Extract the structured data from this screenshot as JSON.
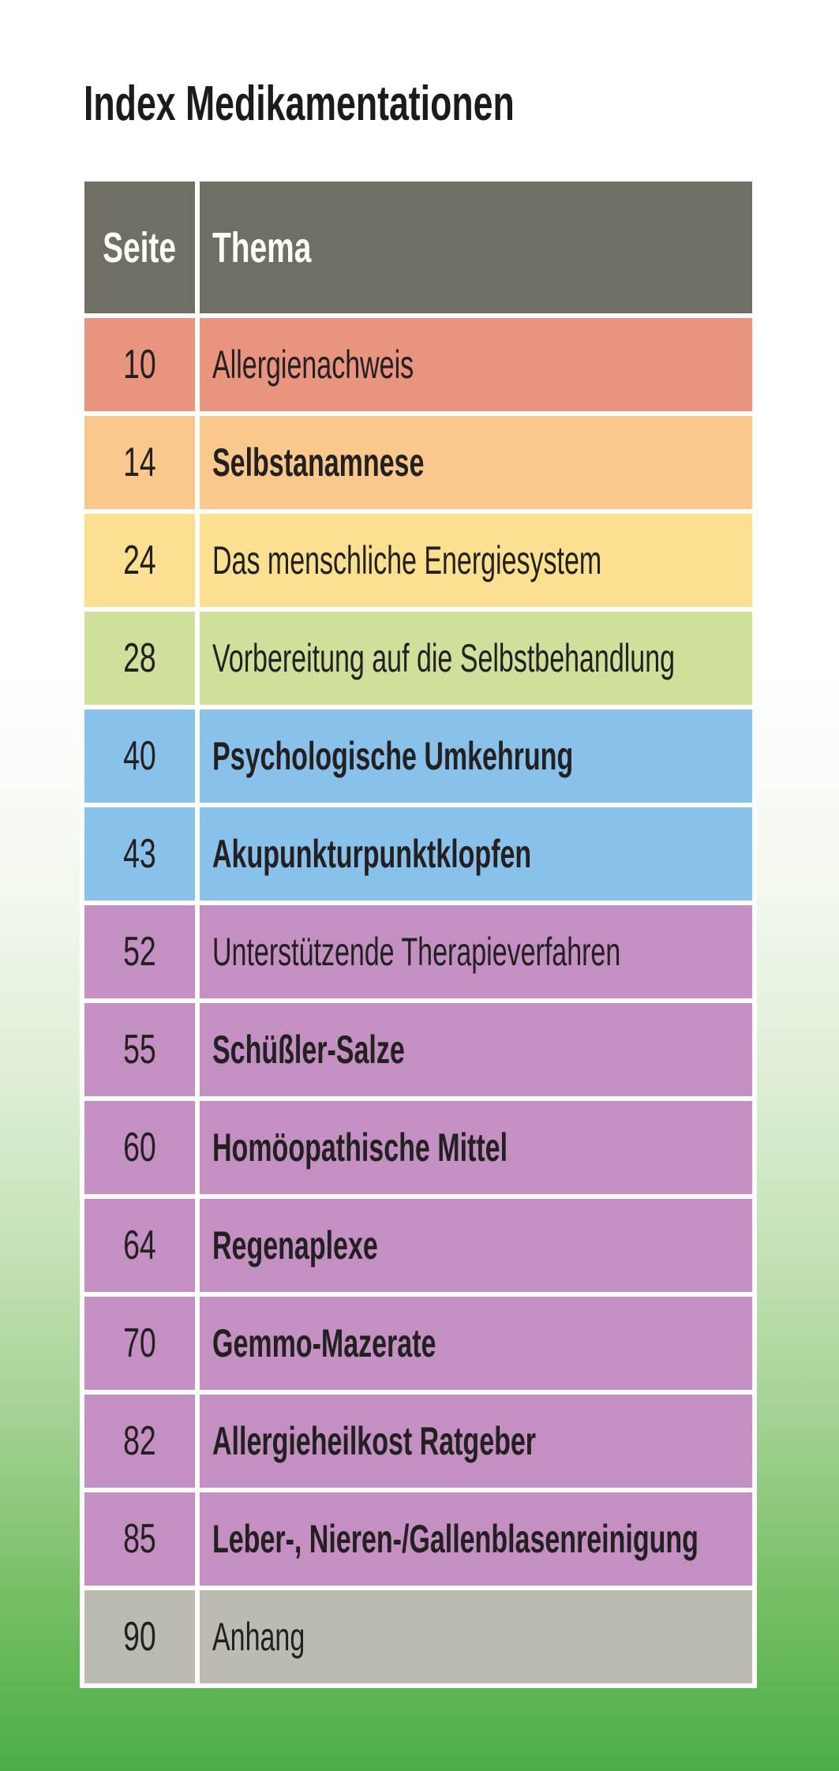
{
  "page": {
    "title": "Index Medikamentationen",
    "background_top_color": "#ffffff",
    "background_bottom_color": "#4bae46"
  },
  "table": {
    "columns": {
      "seite": "Seite",
      "thema": "Thema"
    },
    "header_bg": "#716f63",
    "header_text_color": "#fffefa",
    "divider_color": "#ffffff",
    "text_color": "#232021",
    "rows": [
      {
        "seite": "10",
        "thema": "Allergienachweis",
        "bg": "#e9947f",
        "bold": false
      },
      {
        "seite": "14",
        "thema": "Selbstanamnese",
        "bg": "#fac88c",
        "bold": true
      },
      {
        "seite": "24",
        "thema": "Das menschliche Energiesystem",
        "bg": "#fce092",
        "bold": false
      },
      {
        "seite": "28",
        "thema": "Vorbereitung auf die Selbstbehandlung",
        "bg": "#cfe09c",
        "bold": false
      },
      {
        "seite": "40",
        "thema": "Psychologische Umkehrung",
        "bg": "#89c1eb",
        "bold": true
      },
      {
        "seite": "43",
        "thema": "Akupunkturpunktklopfen",
        "bg": "#89c1eb",
        "bold": true
      },
      {
        "seite": "52",
        "thema": "Unterstützende Therapieverfahren",
        "bg": "#c48fc1",
        "bold": false
      },
      {
        "seite": "55",
        "thema": "Schüßler-Salze",
        "bg": "#c48fc1",
        "bold": true
      },
      {
        "seite": "60",
        "thema": "Homöopathische Mittel",
        "bg": "#c48fc1",
        "bold": true
      },
      {
        "seite": "64",
        "thema": "Regenaplexe",
        "bg": "#c48fc1",
        "bold": true
      },
      {
        "seite": "70",
        "thema": "Gemmo-Mazerate",
        "bg": "#c48fc1",
        "bold": true
      },
      {
        "seite": "82",
        "thema": "Allergieheilkost Ratgeber",
        "bg": "#c48fc1",
        "bold": true
      },
      {
        "seite": "85",
        "thema": "Leber-, Nieren-/Gallenblasenreinigung",
        "bg": "#c48fc1",
        "bold": true
      },
      {
        "seite": "90",
        "thema": "Anhang",
        "bg": "#bdbbb1",
        "bold": false
      }
    ]
  }
}
